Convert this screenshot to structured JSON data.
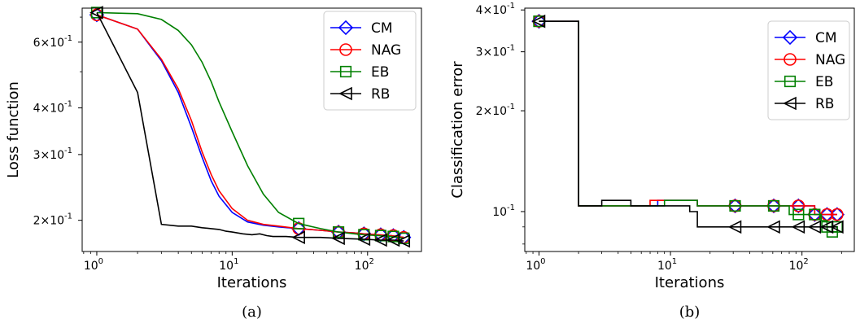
{
  "chart_data": [
    {
      "type": "line",
      "caption": "(a)",
      "xlabel": "Iterations",
      "ylabel": "Loss function",
      "xscale": "log",
      "yscale": "log",
      "xlim": [
        0.78,
        250
      ],
      "ylim": [
        0.165,
        0.74
      ],
      "x_ticks": [
        {
          "value": 1,
          "label": "10^0"
        },
        {
          "value": 10,
          "label": "10^1"
        },
        {
          "value": 100,
          "label": "10^2"
        }
      ],
      "y_ticks": [
        {
          "value": 0.2,
          "label": "2×10^-1"
        },
        {
          "value": 0.3,
          "label": "3×10^-1"
        },
        {
          "value": 0.4,
          "label": "4×10^-1"
        },
        {
          "value": 0.6,
          "label": "6×10^-1"
        }
      ],
      "legend_position": "top-right",
      "series": [
        {
          "name": "CM",
          "color": "#0000ff",
          "marker": "diamond",
          "x": [
            1,
            2,
            3,
            4,
            5,
            6,
            7,
            8,
            10,
            13,
            17,
            22,
            31,
            45,
            61,
            80,
            94,
            120,
            150,
            185
          ],
          "y": [
            0.71,
            0.65,
            0.535,
            0.44,
            0.355,
            0.295,
            0.255,
            0.232,
            0.21,
            0.198,
            0.194,
            0.192,
            0.19,
            0.188,
            0.186,
            0.185,
            0.184,
            0.183,
            0.182,
            0.18
          ],
          "marker_x": [
            1,
            31,
            61,
            94,
            125,
            155,
            185
          ],
          "marker_y": [
            0.71,
            0.19,
            0.186,
            0.184,
            0.183,
            0.182,
            0.18
          ]
        },
        {
          "name": "NAG",
          "color": "#ff0000",
          "marker": "circle",
          "x": [
            1,
            2,
            3,
            4,
            5,
            6,
            7,
            8,
            10,
            13,
            17,
            22,
            31,
            45,
            61,
            80,
            94,
            120,
            150,
            185
          ],
          "y": [
            0.71,
            0.65,
            0.54,
            0.45,
            0.37,
            0.305,
            0.265,
            0.24,
            0.215,
            0.2,
            0.195,
            0.193,
            0.19,
            0.188,
            0.186,
            0.185,
            0.184,
            0.183,
            0.182,
            0.18
          ],
          "marker_x": [
            1,
            31,
            61,
            94,
            125,
            155,
            185
          ],
          "marker_y": [
            0.71,
            0.19,
            0.186,
            0.184,
            0.183,
            0.182,
            0.18
          ]
        },
        {
          "name": "EB",
          "color": "#008000",
          "marker": "square",
          "x": [
            1,
            2,
            3,
            4,
            5,
            6,
            7,
            8,
            10,
            13,
            17,
            22,
            31,
            45,
            61,
            80,
            94,
            120,
            150,
            185
          ],
          "y": [
            0.72,
            0.715,
            0.69,
            0.645,
            0.59,
            0.53,
            0.47,
            0.415,
            0.345,
            0.28,
            0.235,
            0.21,
            0.196,
            0.19,
            0.186,
            0.184,
            0.183,
            0.182,
            0.181,
            0.179
          ],
          "marker_x": [
            1,
            31,
            61,
            94,
            125,
            155,
            185
          ],
          "marker_y": [
            0.72,
            0.196,
            0.186,
            0.183,
            0.182,
            0.181,
            0.179
          ]
        },
        {
          "name": "RB",
          "color": "#000000",
          "marker": "triangle-left",
          "x": [
            1,
            2,
            3,
            4,
            5,
            6,
            7,
            8,
            9,
            10,
            12,
            14,
            16,
            18,
            20,
            25,
            31,
            45,
            61,
            94,
            125,
            155,
            185
          ],
          "y": [
            0.72,
            0.44,
            0.195,
            0.193,
            0.193,
            0.191,
            0.19,
            0.189,
            0.187,
            0.186,
            0.184,
            0.183,
            0.184,
            0.182,
            0.181,
            0.181,
            0.18,
            0.18,
            0.179,
            0.178,
            0.177,
            0.177,
            0.176
          ],
          "marker_x": [
            1,
            31,
            61,
            94,
            125,
            155,
            185
          ],
          "marker_y": [
            0.72,
            0.18,
            0.179,
            0.178,
            0.177,
            0.177,
            0.176
          ]
        }
      ]
    },
    {
      "type": "line",
      "caption": "(b)",
      "xlabel": "Iterations",
      "ylabel": "Classification error",
      "xscale": "log",
      "yscale": "log",
      "xlim": [
        0.78,
        250
      ],
      "ylim": [
        0.076,
        0.405
      ],
      "x_ticks": [
        {
          "value": 1,
          "label": "10^0"
        },
        {
          "value": 10,
          "label": "10^1"
        },
        {
          "value": 100,
          "label": "10^2"
        }
      ],
      "y_ticks": [
        {
          "value": 0.1,
          "label": "10^-1"
        },
        {
          "value": 0.2,
          "label": "2×10^-1"
        },
        {
          "value": 0.3,
          "label": "3×10^-1"
        },
        {
          "value": 0.4,
          "label": "4×10^-1"
        }
      ],
      "legend_position": "top-right",
      "series": [
        {
          "name": "CM",
          "color": "#0000ff",
          "marker": "diamond",
          "step": true,
          "x": [
            1,
            2,
            3,
            4,
            5,
            6,
            7,
            8,
            9,
            10,
            12,
            14,
            16,
            31,
            61,
            94,
            125,
            155,
            185
          ],
          "y": [
            0.37,
            0.104,
            0.104,
            0.104,
            0.104,
            0.104,
            0.104,
            0.108,
            0.108,
            0.108,
            0.108,
            0.108,
            0.104,
            0.104,
            0.104,
            0.104,
            0.098,
            0.098,
            0.098
          ],
          "marker_x": [
            1,
            31,
            61,
            94,
            125,
            155,
            185
          ],
          "marker_y": [
            0.37,
            0.104,
            0.104,
            0.104,
            0.098,
            0.098,
            0.098
          ]
        },
        {
          "name": "NAG",
          "color": "#ff0000",
          "marker": "circle",
          "step": true,
          "x": [
            1,
            2,
            3,
            4,
            5,
            6,
            7,
            8,
            9,
            10,
            12,
            14,
            16,
            31,
            61,
            94,
            125,
            155,
            185
          ],
          "y": [
            0.37,
            0.104,
            0.104,
            0.104,
            0.104,
            0.104,
            0.108,
            0.108,
            0.108,
            0.108,
            0.108,
            0.108,
            0.104,
            0.104,
            0.104,
            0.104,
            0.098,
            0.098,
            0.098
          ],
          "marker_x": [
            1,
            31,
            61,
            94,
            125,
            155,
            185
          ],
          "marker_y": [
            0.37,
            0.104,
            0.104,
            0.104,
            0.098,
            0.098,
            0.098
          ]
        },
        {
          "name": "EB",
          "color": "#008000",
          "marker": "square",
          "step": true,
          "x": [
            1,
            2,
            3,
            4,
            5,
            6,
            7,
            8,
            9,
            10,
            12,
            14,
            16,
            31,
            61,
            80,
            94,
            125,
            140,
            155,
            170,
            185
          ],
          "y": [
            0.37,
            0.104,
            0.104,
            0.104,
            0.104,
            0.104,
            0.104,
            0.104,
            0.108,
            0.108,
            0.108,
            0.108,
            0.104,
            0.104,
            0.104,
            0.098,
            0.098,
            0.098,
            0.094,
            0.09,
            0.087,
            0.09
          ],
          "marker_x": [
            1,
            31,
            61,
            94,
            125,
            155,
            170,
            185
          ],
          "marker_y": [
            0.37,
            0.104,
            0.104,
            0.098,
            0.098,
            0.09,
            0.087,
            0.09
          ]
        },
        {
          "name": "RB",
          "color": "#000000",
          "marker": "triangle-left",
          "step": true,
          "x": [
            1,
            2,
            3,
            4,
            5,
            6,
            7,
            8,
            9,
            10,
            12,
            14,
            16,
            31,
            61,
            94,
            125,
            155,
            185
          ],
          "y": [
            0.37,
            0.104,
            0.108,
            0.108,
            0.104,
            0.104,
            0.104,
            0.104,
            0.104,
            0.104,
            0.104,
            0.1,
            0.09,
            0.09,
            0.09,
            0.09,
            0.09,
            0.09,
            0.09
          ],
          "marker_x": [
            1,
            31,
            61,
            94,
            125,
            155,
            185
          ],
          "marker_y": [
            0.37,
            0.09,
            0.09,
            0.09,
            0.09,
            0.09,
            0.09
          ]
        }
      ]
    }
  ]
}
